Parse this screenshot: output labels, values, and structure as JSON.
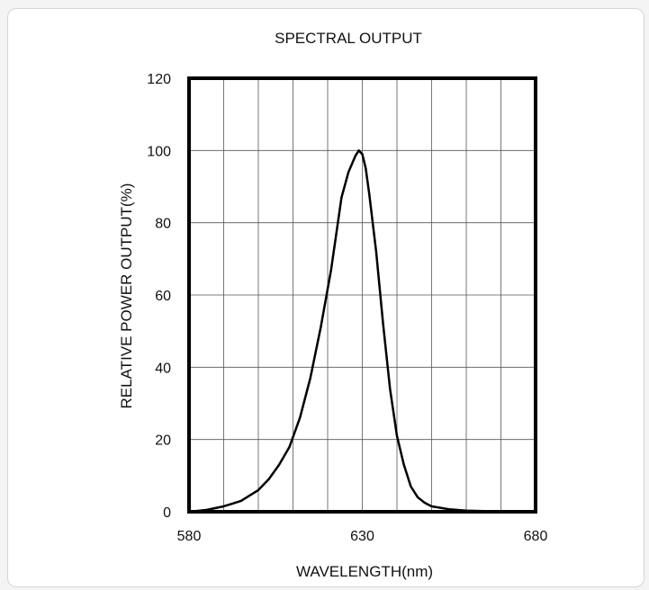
{
  "chart_data": {
    "type": "line",
    "title": "SPECTRAL OUTPUT",
    "xlabel": "WAVELENGTH(nm)",
    "ylabel": "RELATIVE POWER OUTPUT(%)",
    "xlim": [
      580,
      680
    ],
    "ylim": [
      0,
      120
    ],
    "x_ticks": [
      "580",
      "630",
      "680"
    ],
    "y_ticks": [
      "0",
      "20",
      "40",
      "60",
      "80",
      "100",
      "120"
    ],
    "x_grid_step": 10,
    "y_grid_step": 20,
    "grid": true,
    "legend": "none",
    "line_color": "#000000",
    "series": [
      {
        "x": [
          580,
          585,
          590,
          595,
          600,
          603,
          606,
          609,
          612,
          615,
          618,
          621,
          624,
          626,
          628,
          629,
          630,
          631,
          632,
          634,
          636,
          638,
          640,
          642,
          644,
          646,
          648,
          650,
          655,
          660,
          665,
          670,
          675,
          680
        ],
        "y": [
          0,
          0.5,
          1.5,
          3,
          6,
          9,
          13,
          18,
          26,
          37,
          51,
          67,
          87,
          94,
          98.5,
          100,
          99,
          95,
          88,
          72,
          52,
          34,
          21,
          13,
          7,
          4,
          2.5,
          1.5,
          0.7,
          0.3,
          0.2,
          0.1,
          0,
          0
        ]
      }
    ]
  }
}
